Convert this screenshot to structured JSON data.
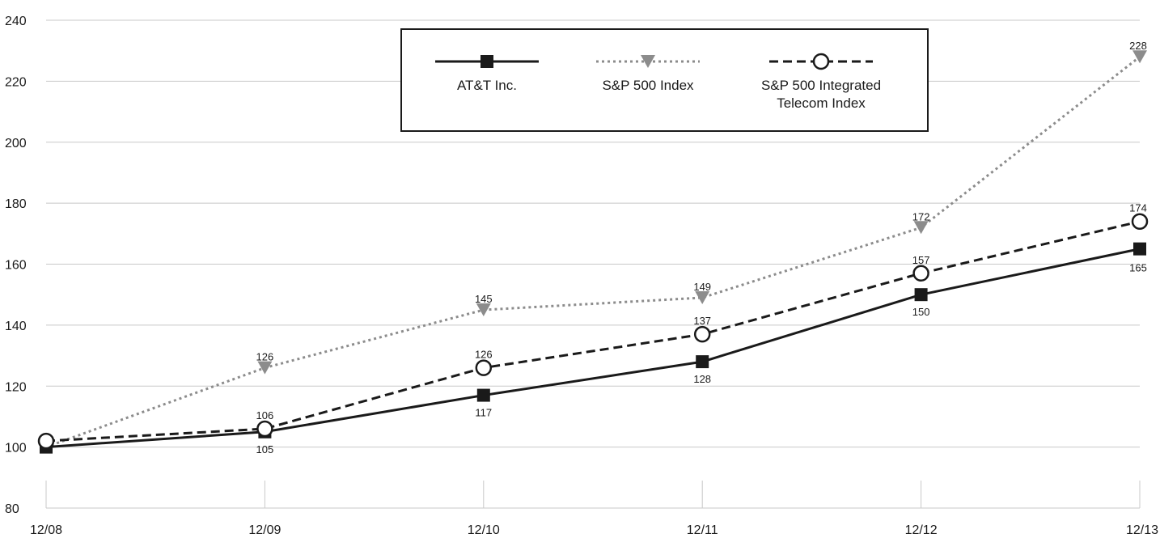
{
  "chart_data": {
    "type": "line",
    "title": "",
    "xlabel": "",
    "ylabel": "",
    "categories": [
      "12/08",
      "12/09",
      "12/10",
      "12/11",
      "12/12",
      "12/13"
    ],
    "ylim": [
      80,
      240
    ],
    "yticks": [
      80,
      100,
      120,
      140,
      160,
      180,
      200,
      220,
      240
    ],
    "grid": "horizontal",
    "legend_position": "top-center",
    "series": [
      {
        "name": "AT&T Inc.",
        "values": [
          100,
          105,
          117,
          128,
          150,
          165
        ],
        "labels": [
          "",
          "105",
          "117",
          "128",
          "150",
          "165"
        ],
        "line_style": "solid",
        "marker": "square",
        "color": "#1a1a1a"
      },
      {
        "name": "S&P 500 Index",
        "values": [
          100,
          126,
          145,
          149,
          172,
          228
        ],
        "labels": [
          "",
          "126",
          "145",
          "149",
          "172",
          "228"
        ],
        "line_style": "dotted",
        "marker": "triangle-down",
        "color": "#8c8c8c"
      },
      {
        "name": "S&P 500 Integrated Telecom Index",
        "legend_lines": [
          "S&P 500 Integrated",
          "Telecom Index"
        ],
        "values": [
          102,
          106,
          126,
          137,
          157,
          174
        ],
        "labels": [
          "",
          "106",
          "126",
          "137",
          "157",
          "174"
        ],
        "line_style": "dashed",
        "marker": "circle-open",
        "color": "#1a1a1a"
      }
    ]
  }
}
